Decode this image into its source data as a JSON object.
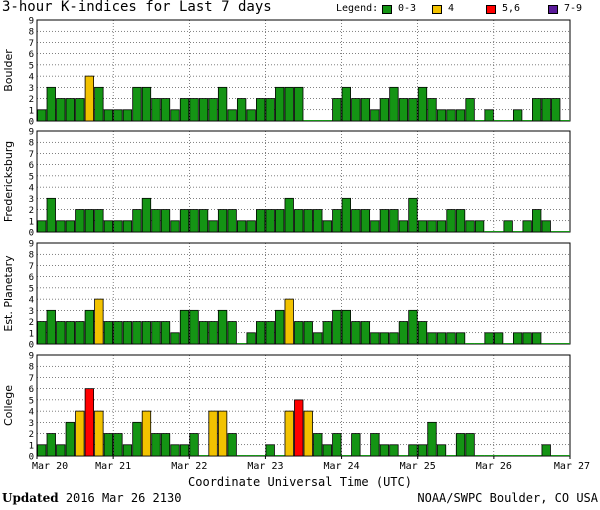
{
  "title": "3-hour K-indices for Last 7 days",
  "legend": {
    "label": "Legend:",
    "items": [
      {
        "label": "0-3",
        "color": "#149414"
      },
      {
        "label": "4",
        "color": "#f2c200"
      },
      {
        "label": "5,6",
        "color": "#ff0000"
      },
      {
        "label": "7-9",
        "color": "#5a1a9a"
      }
    ]
  },
  "footer": {
    "updated_label": "Updated",
    "updated_value": "2016 Mar 26 2130",
    "source": "NOAA/SWPC Boulder, CO USA"
  },
  "colors": {
    "low": "#149414",
    "k4": "#f2c200",
    "k56": "#ff0000",
    "k79": "#5a1a9a"
  },
  "chart_data": {
    "type": "bar",
    "xlabel": "Coordinate Universal Time (UTC)",
    "x_ticks": [
      "Mar 20",
      "Mar 21",
      "Mar 22",
      "Mar 23",
      "Mar 24",
      "Mar 25",
      "Mar 26",
      "Mar 27"
    ],
    "ylim": [
      0,
      9
    ],
    "y_ticks": [
      0,
      1,
      2,
      3,
      4,
      5,
      6,
      7,
      8,
      9
    ],
    "bars_per_day": 8,
    "panels": [
      {
        "name": "Boulder",
        "values": [
          1,
          3,
          2,
          2,
          2,
          4,
          3,
          1,
          1,
          1,
          3,
          3,
          2,
          2,
          1,
          2,
          2,
          2,
          2,
          3,
          1,
          2,
          1,
          2,
          2,
          3,
          3,
          3,
          0,
          0,
          0,
          2,
          3,
          2,
          2,
          1,
          2,
          3,
          2,
          2,
          3,
          2,
          1,
          1,
          1,
          2,
          0,
          1,
          0,
          0,
          1,
          0,
          2,
          2,
          2,
          0
        ]
      },
      {
        "name": "Fredericksburg",
        "values": [
          1,
          3,
          1,
          1,
          2,
          2,
          2,
          1,
          1,
          1,
          2,
          3,
          2,
          2,
          1,
          2,
          2,
          2,
          1,
          2,
          2,
          1,
          1,
          2,
          2,
          2,
          3,
          2,
          2,
          2,
          1,
          2,
          3,
          2,
          2,
          1,
          2,
          2,
          1,
          3,
          1,
          1,
          1,
          2,
          2,
          1,
          1,
          0,
          0,
          1,
          0,
          1,
          2,
          1,
          0,
          0
        ]
      },
      {
        "name": "Est. Planetary",
        "values": [
          2,
          3,
          2,
          2,
          2,
          3,
          4,
          2,
          2,
          2,
          2,
          2,
          2,
          2,
          1,
          3,
          3,
          2,
          2,
          3,
          2,
          0,
          1,
          2,
          2,
          3,
          4,
          2,
          2,
          1,
          2,
          3,
          3,
          2,
          2,
          1,
          1,
          1,
          2,
          3,
          2,
          1,
          1,
          1,
          1,
          0,
          0,
          1,
          1,
          0,
          1,
          1,
          1,
          0,
          0,
          0
        ]
      },
      {
        "name": "College",
        "values": [
          1,
          2,
          1,
          3,
          4,
          6,
          4,
          2,
          2,
          1,
          3,
          4,
          2,
          2,
          1,
          1,
          2,
          0,
          4,
          4,
          2,
          0,
          0,
          0,
          1,
          0,
          4,
          5,
          4,
          2,
          1,
          2,
          0,
          2,
          0,
          2,
          1,
          1,
          0,
          1,
          1,
          3,
          1,
          0,
          2,
          2,
          0,
          0,
          0,
          0,
          0,
          0,
          0,
          1,
          0,
          0
        ]
      }
    ]
  }
}
